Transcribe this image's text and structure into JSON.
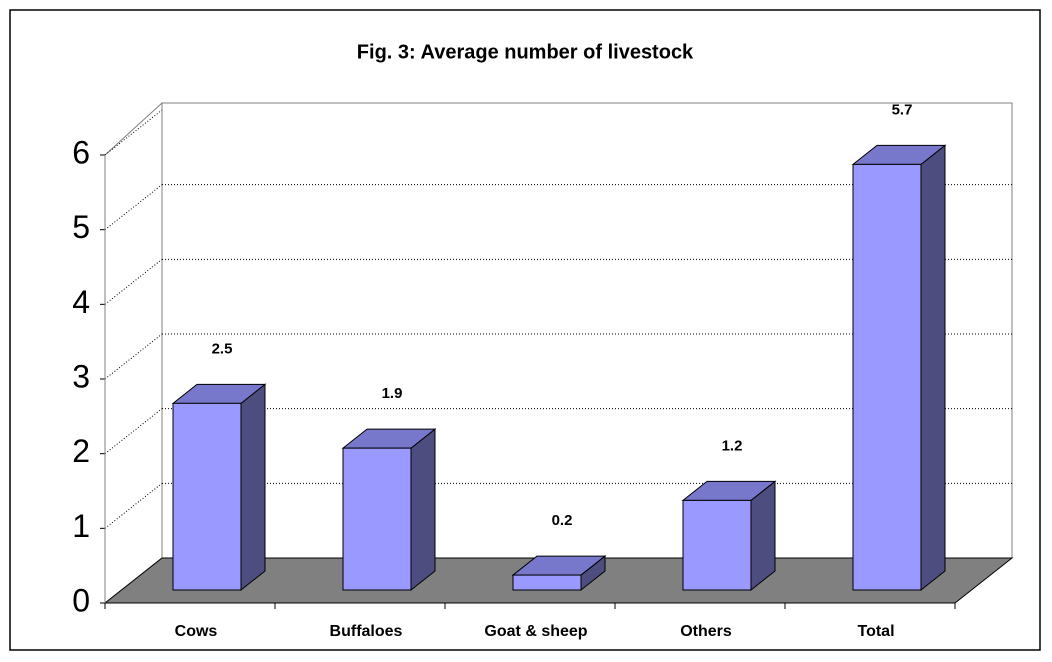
{
  "chart_data": {
    "type": "bar3d",
    "title": "Fig. 3: Average number of livestock",
    "categories": [
      "Cows",
      "Buffaloes",
      "Goat & sheep",
      "Others",
      "Total"
    ],
    "values": [
      2.5,
      1.9,
      0.2,
      1.2,
      5.7
    ],
    "color": "#9999ff",
    "ylim": [
      0,
      6
    ],
    "yticks": [
      0,
      1,
      2,
      3,
      4,
      5,
      6
    ],
    "grid": true
  }
}
